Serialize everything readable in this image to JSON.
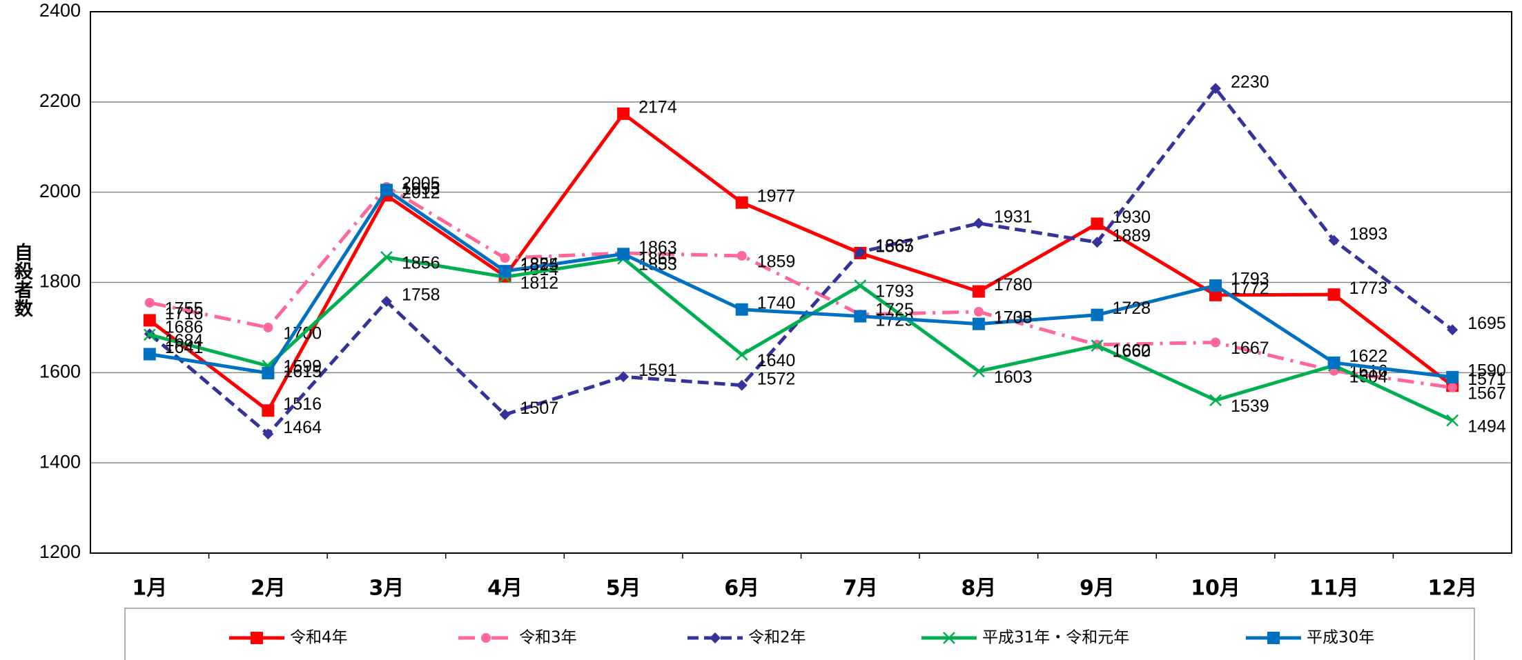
{
  "chart_data": {
    "type": "line",
    "y_axis_label": "自殺者数",
    "categories": [
      "1月",
      "2月",
      "3月",
      "4月",
      "5月",
      "6月",
      "7月",
      "8月",
      "9月",
      "10月",
      "11月",
      "12月"
    ],
    "ylim": [
      1200,
      2400
    ],
    "yticks": [
      1200,
      1400,
      1600,
      1800,
      2000,
      2200,
      2400
    ],
    "grid": true,
    "series": [
      {
        "name": "令和4年",
        "color": "#ff0000",
        "marker": "square",
        "dash": "solid",
        "values": [
          1716,
          1516,
          1993,
          1814,
          2174,
          1977,
          1865,
          1780,
          1930,
          1772,
          1773,
          1571
        ]
      },
      {
        "name": "令和3年",
        "color": "#ff6699",
        "marker": "circle",
        "dash": "dashdot",
        "values": [
          1755,
          1700,
          2012,
          1854,
          1865,
          1859,
          1729,
          1735,
          1662,
          1667,
          1604,
          1567
        ]
      },
      {
        "name": "令和2年",
        "color": "#333399",
        "marker": "diamond",
        "dash": "dashed",
        "values": [
          1686,
          1464,
          1758,
          1507,
          1591,
          1572,
          1867,
          1931,
          1889,
          2230,
          1893,
          1695
        ]
      },
      {
        "name": "平成31年・令和元年",
        "color": "#00b050",
        "marker": "x",
        "dash": "solid",
        "values": [
          1684,
          1615,
          1856,
          1812,
          1853,
          1640,
          1793,
          1603,
          1660,
          1539,
          1616,
          1494
        ]
      },
      {
        "name": "平成30年",
        "color": "#0070c0",
        "marker": "square",
        "dash": "solid",
        "values": [
          1641,
          1599,
          2005,
          1825,
          1863,
          1740,
          1725,
          1708,
          1728,
          1793,
          1622,
          1590
        ]
      }
    ]
  }
}
